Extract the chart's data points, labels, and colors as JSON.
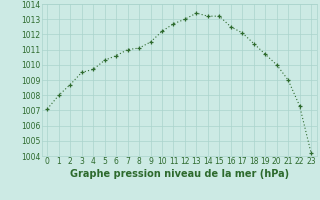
{
  "hours": [
    0,
    1,
    2,
    3,
    4,
    5,
    6,
    7,
    8,
    9,
    10,
    11,
    12,
    13,
    14,
    15,
    16,
    17,
    18,
    19,
    20,
    21,
    22,
    23
  ],
  "pressure": [
    1007.1,
    1008.0,
    1008.7,
    1009.5,
    1009.7,
    1010.3,
    1010.6,
    1011.0,
    1011.1,
    1011.5,
    1012.2,
    1012.7,
    1013.0,
    1013.4,
    1013.2,
    1013.2,
    1012.5,
    1012.1,
    1011.4,
    1010.7,
    1010.0,
    1009.0,
    1007.3,
    1004.2
  ],
  "line_color": "#2d6a2d",
  "bg_color": "#cceae4",
  "grid_color": "#aad4cc",
  "xlabel": "Graphe pression niveau de la mer (hPa)",
  "ylim_min": 1004,
  "ylim_max": 1014,
  "yticks": [
    1004,
    1005,
    1006,
    1007,
    1008,
    1009,
    1010,
    1011,
    1012,
    1013,
    1014
  ],
  "xticks": [
    0,
    1,
    2,
    3,
    4,
    5,
    6,
    7,
    8,
    9,
    10,
    11,
    12,
    13,
    14,
    15,
    16,
    17,
    18,
    19,
    20,
    21,
    22,
    23
  ],
  "tick_fontsize": 5.5,
  "xlabel_fontsize": 7.0
}
